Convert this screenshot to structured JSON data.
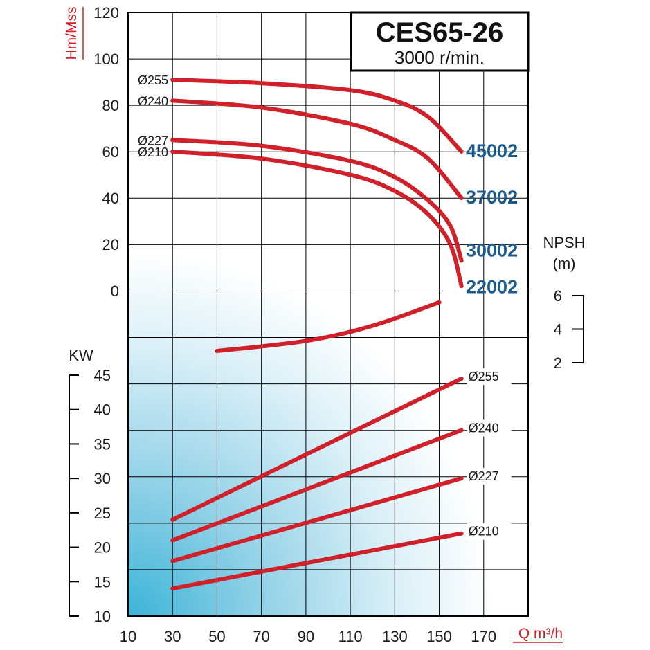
{
  "chart_data": {
    "type": "line",
    "title": "CES65-26",
    "subtitle": "3000 r/min.",
    "xlabel": "Q m³/h",
    "xlim": [
      10,
      190
    ],
    "x_ticks": [
      10,
      30,
      50,
      70,
      90,
      110,
      130,
      150,
      170
    ],
    "head": {
      "ylabel": "Hm/Mss",
      "ylim": [
        0,
        120
      ],
      "y_ticks": [
        0,
        20,
        40,
        60,
        80,
        100,
        120
      ],
      "series": [
        {
          "name": "Ø255",
          "model": "45002",
          "points": [
            [
              30,
              91
            ],
            [
              70,
              89.5
            ],
            [
              110,
              86.5
            ],
            [
              130,
              82
            ],
            [
              145,
              75
            ],
            [
              160,
              60
            ]
          ]
        },
        {
          "name": "Ø240",
          "model": "37002",
          "points": [
            [
              30,
              82
            ],
            [
              70,
              79
            ],
            [
              110,
              72
            ],
            [
              130,
              65
            ],
            [
              145,
              57
            ],
            [
              160,
              40
            ]
          ]
        },
        {
          "name": "Ø227",
          "model": "30002",
          "points": [
            [
              30,
              65
            ],
            [
              70,
              62.5
            ],
            [
              110,
              56
            ],
            [
              130,
              49
            ],
            [
              145,
              39
            ],
            [
              155,
              28
            ],
            [
              160,
              13
            ]
          ]
        },
        {
          "name": "Ø210",
          "model": "22002",
          "points": [
            [
              30,
              60
            ],
            [
              70,
              57
            ],
            [
              110,
              50
            ],
            [
              130,
              43
            ],
            [
              145,
              33
            ],
            [
              155,
              20
            ],
            [
              160,
              2
            ]
          ]
        }
      ]
    },
    "npsh": {
      "ylabel": "NPSH",
      "unit": "(m)",
      "ylim": [
        2,
        6
      ],
      "y_ticks": [
        6,
        4,
        2
      ],
      "points": [
        [
          50,
          2.7
        ],
        [
          90,
          3.3
        ],
        [
          120,
          4.2
        ],
        [
          150,
          5.6
        ]
      ]
    },
    "power": {
      "ylabel": "KW",
      "ylim": [
        10,
        45
      ],
      "y_ticks": [
        45,
        40,
        35,
        30,
        25,
        20,
        15,
        10
      ],
      "series": [
        {
          "name": "Ø255",
          "points": [
            [
              30,
              24
            ],
            [
              160,
              44.5
            ]
          ]
        },
        {
          "name": "Ø240",
          "points": [
            [
              30,
              21
            ],
            [
              160,
              37
            ]
          ]
        },
        {
          "name": "Ø227",
          "points": [
            [
              30,
              18
            ],
            [
              160,
              30
            ]
          ]
        },
        {
          "name": "Ø210",
          "points": [
            [
              30,
              14
            ],
            [
              160,
              22
            ]
          ]
        }
      ]
    }
  }
}
